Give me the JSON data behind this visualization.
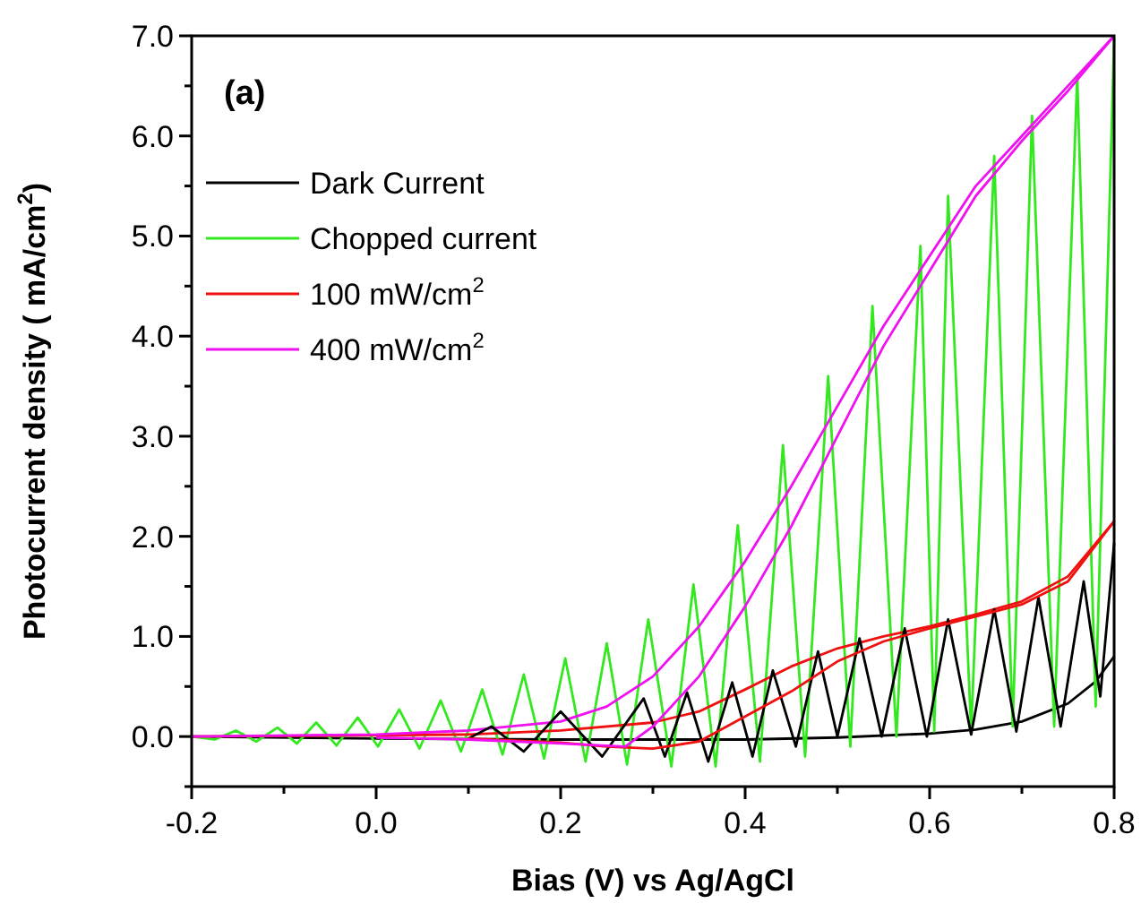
{
  "chart_data": {
    "type": "line",
    "xlabel": "Bias (V) vs Ag/AgCl",
    "ylabel": "Photocurrent density ( mA/cm$^{2}$)",
    "annotations": [
      "(a)"
    ],
    "xlim": [
      -0.2,
      0.8
    ],
    "ylim": [
      -0.5,
      7.0
    ],
    "xticks": [
      {
        "value": -0.2,
        "label": "-0.2"
      },
      {
        "value": -0.1,
        "label": null
      },
      {
        "value": 0,
        "label": "0.0"
      },
      {
        "value": 0.1,
        "label": null
      },
      {
        "value": 0.2,
        "label": "0.2"
      },
      {
        "value": 0.3,
        "label": null
      },
      {
        "value": 0.4,
        "label": "0.4"
      },
      {
        "value": 0.5,
        "label": null
      },
      {
        "value": 0.6,
        "label": "0.6"
      },
      {
        "value": 0.7,
        "label": null
      },
      {
        "value": 0.8,
        "label": "0.8"
      }
    ],
    "yticks": [
      {
        "value": -0.5,
        "label": null
      },
      {
        "value": 0,
        "label": "0.0"
      },
      {
        "value": 0.5,
        "label": null
      },
      {
        "value": 1,
        "label": "1.0"
      },
      {
        "value": 1.5,
        "label": null
      },
      {
        "value": 2,
        "label": "2.0"
      },
      {
        "value": 2.5,
        "label": null
      },
      {
        "value": 3,
        "label": "3.0"
      },
      {
        "value": 3.5,
        "label": null
      },
      {
        "value": 4,
        "label": "4.0"
      },
      {
        "value": 4.5,
        "label": null
      },
      {
        "value": 5,
        "label": "5.0"
      },
      {
        "value": 5.5,
        "label": null
      },
      {
        "value": 6,
        "label": "6.0"
      },
      {
        "value": 6.5,
        "label": null
      },
      {
        "value": 7,
        "label": "7.0"
      }
    ],
    "grid": false,
    "legend": "top left",
    "marker": "none",
    "line_style": "solid",
    "series": [
      {
        "name": "Dark Current",
        "color": "#000000",
        "x": [
          -0.2,
          0,
          0.2,
          0.4,
          0.5,
          0.6,
          0.65,
          0.7,
          0.75,
          0.78,
          0.8
        ],
        "values": [
          0,
          -0.02,
          -0.03,
          -0.03,
          -0.01,
          0.03,
          0.07,
          0.15,
          0.33,
          0.55,
          0.8
        ]
      },
      {
        "name": "Chopped current",
        "color": "#33e81f",
        "x": [
          -0.2,
          -0.175,
          -0.152,
          -0.13,
          -0.107,
          -0.086,
          -0.065,
          -0.043,
          -0.02,
          0.002,
          0.025,
          0.047,
          0.07,
          0.092,
          0.115,
          0.137,
          0.16,
          0.182,
          0.205,
          0.227,
          0.25,
          0.272,
          0.295,
          0.32,
          0.344,
          0.368,
          0.392,
          0.416,
          0.441,
          0.465,
          0.49,
          0.514,
          0.538,
          0.564,
          0.59,
          0.605,
          0.62,
          0.645,
          0.67,
          0.69,
          0.711,
          0.735,
          0.76,
          0.78,
          0.8
        ],
        "values": [
          0,
          -0.03,
          0.06,
          -0.05,
          0.09,
          -0.07,
          0.14,
          -0.09,
          0.19,
          -0.1,
          0.27,
          -0.12,
          0.36,
          -0.15,
          0.47,
          -0.18,
          0.62,
          -0.22,
          0.78,
          -0.25,
          0.93,
          -0.28,
          1.17,
          -0.3,
          1.52,
          -0.3,
          2.11,
          -0.25,
          2.91,
          -0.2,
          3.6,
          -0.1,
          4.3,
          0.0,
          4.9,
          0.05,
          5.4,
          0.05,
          5.8,
          0.1,
          6.2,
          0.1,
          6.6,
          0.3,
          6.97
        ]
      },
      {
        "name": "100 mW/cm$^{2}$",
        "color": "#f01010",
        "x": [
          -0.2,
          0.1,
          0.2,
          0.3,
          0.35,
          0.4,
          0.45,
          0.5,
          0.55,
          0.6,
          0.65,
          0.7,
          0.75,
          0.8
        ],
        "values": [
          0,
          0.02,
          0.06,
          0.14,
          0.25,
          0.47,
          0.7,
          0.88,
          1.0,
          1.1,
          1.22,
          1.35,
          1.6,
          2.15
        ]
      },
      {
        "name": "400 mW/cm$^{2}$",
        "color": "#f010f0",
        "x": [
          -0.2,
          0,
          0.1,
          0.2,
          0.25,
          0.3,
          0.35,
          0.4,
          0.45,
          0.5,
          0.55,
          0.6,
          0.65,
          0.7,
          0.75,
          0.8
        ],
        "values": [
          0,
          0.02,
          0.06,
          0.15,
          0.3,
          0.6,
          1.1,
          1.75,
          2.5,
          3.3,
          4.1,
          4.8,
          5.5,
          6.0,
          6.5,
          7.0
        ]
      },
      {
        "color": "#000000",
        "x": [
          0.1,
          0.125,
          0.16,
          0.2,
          0.245,
          0.29,
          0.313,
          0.337,
          0.36,
          0.386,
          0.408,
          0.43,
          0.455,
          0.479,
          0.5,
          0.524,
          0.548,
          0.573,
          0.597,
          0.62,
          0.645,
          0.67,
          0.694,
          0.718,
          0.742,
          0.767,
          0.785,
          0.8
        ],
        "values": [
          -0.02,
          0.1,
          -0.15,
          0.25,
          -0.2,
          0.38,
          -0.2,
          0.44,
          -0.25,
          0.54,
          -0.2,
          0.66,
          -0.1,
          0.85,
          0.0,
          0.98,
          0.0,
          1.08,
          0.0,
          1.17,
          0.02,
          1.27,
          0.05,
          1.39,
          0.1,
          1.55,
          0.4,
          1.93
        ]
      },
      {
        "color": "#f01010",
        "x": [
          0.1,
          0.2,
          0.25,
          0.3,
          0.35,
          0.4,
          0.45,
          0.5,
          0.55,
          0.6,
          0.65,
          0.7,
          0.75,
          0.8
        ],
        "values": [
          -0.02,
          -0.06,
          -0.1,
          -0.12,
          -0.05,
          0.2,
          0.45,
          0.75,
          0.95,
          1.08,
          1.2,
          1.32,
          1.55,
          2.15
        ]
      },
      {
        "color": "#f010f0",
        "x": [
          0,
          0.1,
          0.2,
          0.27,
          0.3,
          0.35,
          0.4,
          0.45,
          0.5,
          0.55,
          0.6,
          0.65,
          0.7,
          0.75,
          0.8
        ],
        "values": [
          -0.01,
          -0.03,
          -0.07,
          -0.1,
          0.1,
          0.6,
          1.3,
          2.1,
          3.0,
          3.9,
          4.65,
          5.4,
          5.95,
          6.45,
          7.0
        ]
      }
    ]
  }
}
